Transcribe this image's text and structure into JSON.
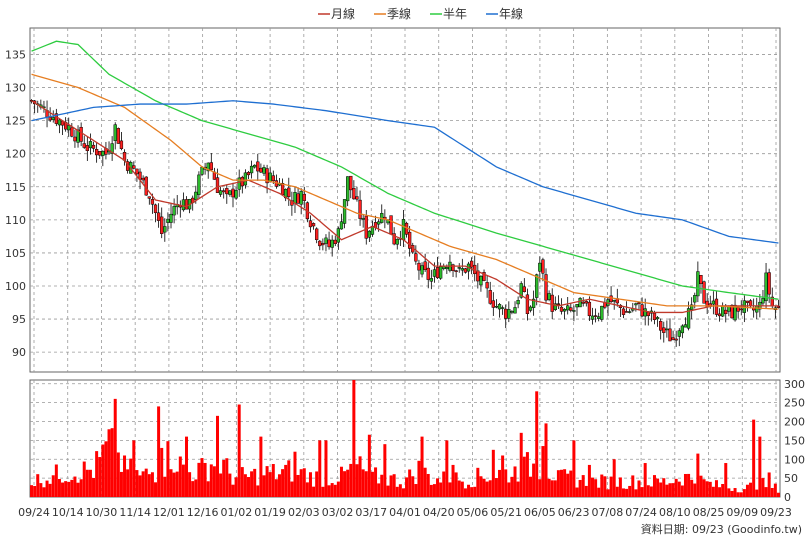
{
  "legend": [
    {
      "label": "月線",
      "color": "#c0392b"
    },
    {
      "label": "季線",
      "color": "#e67e22"
    },
    {
      "label": "半年",
      "color": "#2ecc40"
    },
    {
      "label": "年線",
      "color": "#1f6fd1"
    }
  ],
  "footer": "資料日期: 09/23  (Goodinfo.tw)",
  "chart_data": {
    "type": "candlestick-with-volume",
    "x_tick_labels": [
      "09/24",
      "10/14",
      "10/30",
      "11/14",
      "12/01",
      "12/16",
      "01/02",
      "01/19",
      "02/03",
      "03/02",
      "03/17",
      "04/01",
      "04/20",
      "05/06",
      "05/21",
      "06/05",
      "06/23",
      "07/08",
      "07/24",
      "08/10",
      "08/25",
      "09/09",
      "09/23"
    ],
    "price_axis": {
      "ticks": [
        90,
        95,
        100,
        105,
        110,
        115,
        120,
        125,
        130,
        135
      ],
      "range": [
        87,
        139
      ]
    },
    "volume_axis": {
      "ticks": [
        0,
        50,
        100,
        150,
        200,
        250,
        300
      ],
      "range": [
        0,
        310
      ]
    },
    "moving_averages": [
      {
        "name": "月線",
        "color": "#c0392b",
        "anchors": [
          [
            0,
            128
          ],
          [
            10,
            125
          ],
          [
            20,
            122
          ],
          [
            30,
            119
          ],
          [
            40,
            113
          ],
          [
            50,
            112
          ],
          [
            60,
            115
          ],
          [
            70,
            116
          ],
          [
            80,
            114
          ],
          [
            90,
            111
          ],
          [
            100,
            107
          ],
          [
            110,
            109
          ],
          [
            120,
            107
          ],
          [
            130,
            103
          ],
          [
            140,
            103
          ],
          [
            150,
            101
          ],
          [
            160,
            98
          ],
          [
            170,
            97
          ],
          [
            180,
            98
          ],
          [
            190,
            97
          ],
          [
            200,
            96
          ],
          [
            210,
            96
          ],
          [
            220,
            97
          ],
          [
            230,
            97
          ],
          [
            241,
            97
          ]
        ]
      },
      {
        "name": "季線",
        "color": "#e67e22",
        "anchors": [
          [
            0,
            132
          ],
          [
            15,
            130
          ],
          [
            30,
            127
          ],
          [
            45,
            122
          ],
          [
            55,
            118
          ],
          [
            65,
            116
          ],
          [
            75,
            116
          ],
          [
            85,
            115
          ],
          [
            95,
            113
          ],
          [
            105,
            111
          ],
          [
            115,
            110
          ],
          [
            125,
            108
          ],
          [
            135,
            106
          ],
          [
            150,
            104
          ],
          [
            165,
            101
          ],
          [
            175,
            99
          ],
          [
            190,
            98
          ],
          [
            205,
            97
          ],
          [
            220,
            97
          ],
          [
            241,
            96.5
          ]
        ]
      },
      {
        "name": "半年",
        "color": "#2ecc40",
        "anchors": [
          [
            0,
            135.5
          ],
          [
            8,
            137
          ],
          [
            15,
            136.5
          ],
          [
            25,
            132
          ],
          [
            40,
            128
          ],
          [
            55,
            125
          ],
          [
            70,
            123
          ],
          [
            85,
            121
          ],
          [
            100,
            118
          ],
          [
            115,
            114
          ],
          [
            130,
            111
          ],
          [
            150,
            108
          ],
          [
            165,
            106
          ],
          [
            180,
            104
          ],
          [
            195,
            102
          ],
          [
            210,
            100
          ],
          [
            225,
            99
          ],
          [
            241,
            98
          ]
        ]
      },
      {
        "name": "年線",
        "color": "#1f6fd1",
        "anchors": [
          [
            0,
            125
          ],
          [
            10,
            126
          ],
          [
            20,
            127
          ],
          [
            35,
            127.5
          ],
          [
            50,
            127.5
          ],
          [
            65,
            128
          ],
          [
            78,
            127.5
          ],
          [
            95,
            126.5
          ],
          [
            115,
            125
          ],
          [
            130,
            124
          ],
          [
            150,
            118
          ],
          [
            165,
            115
          ],
          [
            180,
            113
          ],
          [
            195,
            111
          ],
          [
            210,
            110
          ],
          [
            225,
            107.5
          ],
          [
            241,
            106.5
          ]
        ]
      }
    ],
    "price_trend": [
      [
        0,
        128
      ],
      [
        6,
        126
      ],
      [
        12,
        124
      ],
      [
        18,
        121
      ],
      [
        24,
        120
      ],
      [
        27,
        124
      ],
      [
        30,
        119
      ],
      [
        34,
        117
      ],
      [
        38,
        114
      ],
      [
        40,
        111
      ],
      [
        42,
        108
      ],
      [
        45,
        111
      ],
      [
        48,
        113
      ],
      [
        51,
        112
      ],
      [
        54,
        116
      ],
      [
        57,
        119
      ],
      [
        60,
        115
      ],
      [
        63,
        113
      ],
      [
        66,
        115
      ],
      [
        69,
        116
      ],
      [
        72,
        118
      ],
      [
        75,
        117
      ],
      [
        78,
        116
      ],
      [
        81,
        115
      ],
      [
        84,
        113
      ],
      [
        87,
        114
      ],
      [
        90,
        110
      ],
      [
        93,
        107
      ],
      [
        96,
        106
      ],
      [
        99,
        108
      ],
      [
        102,
        116
      ],
      [
        105,
        112
      ],
      [
        108,
        108
      ],
      [
        111,
        110
      ],
      [
        114,
        111
      ],
      [
        117,
        107
      ],
      [
        120,
        109
      ],
      [
        123,
        104
      ],
      [
        126,
        102
      ],
      [
        129,
        101
      ],
      [
        132,
        103
      ],
      [
        135,
        104
      ],
      [
        138,
        102
      ],
      [
        141,
        103
      ],
      [
        144,
        101
      ],
      [
        147,
        99
      ],
      [
        150,
        97
      ],
      [
        153,
        96
      ],
      [
        156,
        97
      ],
      [
        158,
        100
      ],
      [
        160,
        96
      ],
      [
        162,
        98
      ],
      [
        164,
        104
      ],
      [
        166,
        99
      ],
      [
        168,
        97
      ],
      [
        171,
        96
      ],
      [
        174,
        96
      ],
      [
        177,
        97
      ],
      [
        180,
        96
      ],
      [
        183,
        96
      ],
      [
        186,
        98
      ],
      [
        189,
        97
      ],
      [
        192,
        96
      ],
      [
        195,
        97
      ],
      [
        198,
        96
      ],
      [
        201,
        95
      ],
      [
        204,
        93
      ],
      [
        207,
        92
      ],
      [
        210,
        95
      ],
      [
        213,
        96
      ],
      [
        215,
        101
      ],
      [
        217,
        98
      ],
      [
        220,
        97
      ],
      [
        223,
        96
      ],
      [
        226,
        96
      ],
      [
        229,
        97
      ],
      [
        232,
        96
      ],
      [
        235,
        97
      ],
      [
        237,
        101
      ],
      [
        239,
        97
      ],
      [
        241,
        96.5
      ]
    ],
    "volume_baseline": [
      [
        0,
        45
      ],
      [
        10,
        70
      ],
      [
        20,
        80
      ],
      [
        25,
        150
      ],
      [
        30,
        90
      ],
      [
        35,
        60
      ],
      [
        40,
        75
      ],
      [
        45,
        130
      ],
      [
        50,
        70
      ],
      [
        55,
        80
      ],
      [
        60,
        110
      ],
      [
        65,
        60
      ],
      [
        70,
        60
      ],
      [
        75,
        70
      ],
      [
        80,
        70
      ],
      [
        85,
        80
      ],
      [
        90,
        60
      ],
      [
        95,
        55
      ],
      [
        100,
        60
      ],
      [
        105,
        90
      ],
      [
        110,
        60
      ],
      [
        115,
        55
      ],
      [
        120,
        45
      ],
      [
        125,
        80
      ],
      [
        130,
        50
      ],
      [
        135,
        55
      ],
      [
        140,
        50
      ],
      [
        145,
        60
      ],
      [
        150,
        70
      ],
      [
        155,
        70
      ],
      [
        160,
        90
      ],
      [
        165,
        95
      ],
      [
        170,
        55
      ],
      [
        175,
        55
      ],
      [
        180,
        45
      ],
      [
        185,
        45
      ],
      [
        190,
        45
      ],
      [
        195,
        45
      ],
      [
        200,
        45
      ],
      [
        205,
        45
      ],
      [
        210,
        60
      ],
      [
        215,
        50
      ],
      [
        220,
        35
      ],
      [
        225,
        30
      ],
      [
        230,
        25
      ],
      [
        235,
        40
      ],
      [
        241,
        25
      ]
    ],
    "volume_spikes": [
      [
        27,
        260
      ],
      [
        30,
        110
      ],
      [
        33,
        150
      ],
      [
        41,
        240
      ],
      [
        42,
        130
      ],
      [
        50,
        160
      ],
      [
        60,
        215
      ],
      [
        67,
        245
      ],
      [
        74,
        160
      ],
      [
        85,
        120
      ],
      [
        93,
        150
      ],
      [
        95,
        150
      ],
      [
        104,
        350
      ],
      [
        109,
        165
      ],
      [
        114,
        140
      ],
      [
        126,
        160
      ],
      [
        134,
        150
      ],
      [
        136,
        85
      ],
      [
        149,
        125
      ],
      [
        152,
        110
      ],
      [
        158,
        170
      ],
      [
        163,
        280
      ],
      [
        165,
        135
      ],
      [
        166,
        195
      ],
      [
        175,
        150
      ],
      [
        180,
        85
      ],
      [
        188,
        100
      ],
      [
        198,
        90
      ],
      [
        215,
        115
      ],
      [
        224,
        90
      ],
      [
        233,
        205
      ],
      [
        235,
        160
      ],
      [
        238,
        65
      ]
    ]
  }
}
